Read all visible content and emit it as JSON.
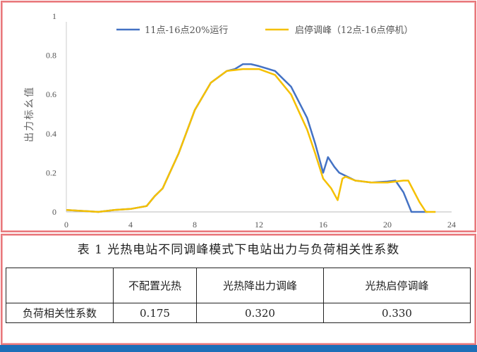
{
  "chart_data": {
    "type": "line",
    "ylabel": "出力标幺值",
    "xlim": [
      0,
      24
    ],
    "ylim": [
      0,
      1
    ],
    "xticks": [
      "0",
      "4",
      "8",
      "12",
      "16",
      "20",
      "24"
    ],
    "yticks": [
      "0",
      "0.2",
      "0.4",
      "0.6",
      "0.8",
      "1"
    ],
    "grid": false,
    "legend": "top",
    "series": [
      {
        "name": "11点-16点20%运行",
        "color": "#4472c4",
        "x": [
          0,
          1,
          2,
          3,
          4,
          5,
          5.5,
          6,
          7,
          8,
          9,
          10,
          10.5,
          11,
          11.5,
          12,
          13,
          14,
          15,
          15.5,
          16,
          16.3,
          16.7,
          17,
          18,
          19,
          20,
          20.5,
          21,
          21.5,
          22.5
        ],
        "y": [
          0.01,
          0.005,
          0,
          0.01,
          0.015,
          0.03,
          0.08,
          0.12,
          0.3,
          0.52,
          0.66,
          0.72,
          0.73,
          0.755,
          0.755,
          0.745,
          0.72,
          0.64,
          0.48,
          0.35,
          0.2,
          0.28,
          0.23,
          0.2,
          0.16,
          0.15,
          0.155,
          0.16,
          0.1,
          0,
          0
        ]
      },
      {
        "name": "启停调峰（12点-16点停机）",
        "color": "#f5c000",
        "x": [
          0,
          1,
          2,
          3,
          4,
          5,
          5.5,
          6,
          7,
          8,
          9,
          10,
          10.5,
          11,
          12,
          13,
          14,
          15,
          15.5,
          16,
          16.5,
          16.9,
          17.2,
          17.4,
          18,
          19,
          20,
          21,
          21.3,
          22,
          22.4,
          23
        ],
        "y": [
          0.01,
          0.005,
          0,
          0.01,
          0.015,
          0.03,
          0.08,
          0.12,
          0.3,
          0.52,
          0.66,
          0.72,
          0.725,
          0.73,
          0.73,
          0.7,
          0.6,
          0.42,
          0.3,
          0.17,
          0.12,
          0.06,
          0.17,
          0.18,
          0.16,
          0.15,
          0.15,
          0.16,
          0.16,
          0.05,
          0,
          0
        ]
      }
    ]
  },
  "table": {
    "caption": "表 1 光热电站不同调峰模式下电站出力与负荷相关性系数",
    "headers": [
      "",
      "不配置光热",
      "光热降出力调峰",
      "光热启停调峰"
    ],
    "row_label": "负荷相关性系数",
    "values": [
      "0.175",
      "0.320",
      "0.330"
    ]
  }
}
